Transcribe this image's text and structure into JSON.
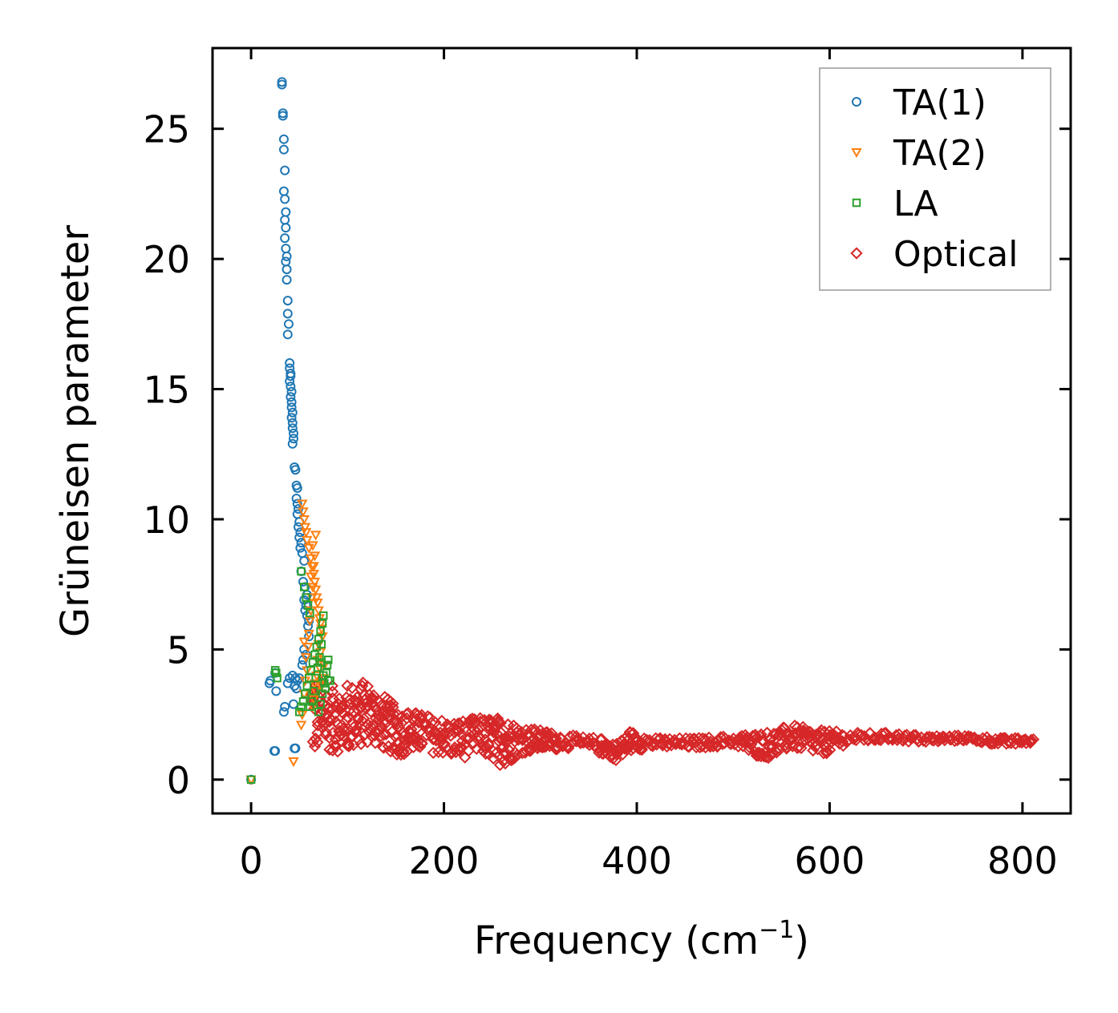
{
  "chart_data": {
    "type": "scatter",
    "xlabel": "Frequency (cm",
    "xlabel_sup": "−1",
    "xlabel_close": ")",
    "ylabel": "Grüneisen parameter",
    "xlim": [
      -40,
      850
    ],
    "ylim": [
      -1.3,
      28.1
    ],
    "xticks": [
      0,
      200,
      400,
      600,
      800
    ],
    "xtick_labels": [
      "0",
      "200",
      "400",
      "600",
      "800"
    ],
    "yticks": [
      0,
      5,
      10,
      15,
      20,
      25
    ],
    "ytick_labels": [
      "0",
      "5",
      "10",
      "15",
      "20",
      "25"
    ],
    "grid": false,
    "legend_position": "top-right",
    "series": [
      {
        "name": "TA(1)",
        "marker": "circle",
        "color": "#1f77b4",
        "points": [
          [
            0,
            0
          ],
          [
            24,
            1.1
          ],
          [
            25,
            1.1
          ],
          [
            19,
            3.7
          ],
          [
            20,
            3.8
          ],
          [
            25,
            4.1
          ],
          [
            26,
            3.4
          ],
          [
            34,
            2.6
          ],
          [
            35,
            2.8
          ],
          [
            38,
            3.7
          ],
          [
            40,
            3.9
          ],
          [
            43,
            4.0
          ],
          [
            45,
            3.6
          ],
          [
            46,
            3.9
          ],
          [
            47,
            3.5
          ],
          [
            44,
            2.9
          ],
          [
            45,
            1.2
          ],
          [
            46,
            1.2
          ],
          [
            48,
            3.8
          ],
          [
            50,
            3.9
          ],
          [
            32,
            26.8
          ],
          [
            32,
            26.7
          ],
          [
            33,
            25.6
          ],
          [
            33,
            25.5
          ],
          [
            34,
            24.6
          ],
          [
            34,
            24.2
          ],
          [
            35,
            23.4
          ],
          [
            34,
            22.6
          ],
          [
            35,
            22.3
          ],
          [
            36,
            21.8
          ],
          [
            35,
            21.5
          ],
          [
            36,
            21.2
          ],
          [
            35,
            20.8
          ],
          [
            36,
            20.4
          ],
          [
            37,
            20.1
          ],
          [
            36,
            19.9
          ],
          [
            37,
            19.6
          ],
          [
            37,
            19.2
          ],
          [
            38,
            18.4
          ],
          [
            38,
            17.9
          ],
          [
            39,
            17.5
          ],
          [
            38,
            17.1
          ],
          [
            40,
            16.0
          ],
          [
            40,
            15.8
          ],
          [
            41,
            15.6
          ],
          [
            41,
            15.5
          ],
          [
            40,
            15.3
          ],
          [
            41,
            15.1
          ],
          [
            42,
            14.9
          ],
          [
            41,
            14.7
          ],
          [
            42,
            14.5
          ],
          [
            42,
            14.3
          ],
          [
            43,
            14.1
          ],
          [
            42,
            13.9
          ],
          [
            43,
            13.7
          ],
          [
            43,
            13.5
          ],
          [
            44,
            13.3
          ],
          [
            44,
            13.1
          ],
          [
            43,
            12.9
          ],
          [
            45,
            12.0
          ],
          [
            46,
            11.9
          ],
          [
            47,
            11.3
          ],
          [
            48,
            11.2
          ],
          [
            47,
            10.8
          ],
          [
            48,
            10.6
          ],
          [
            49,
            10.4
          ],
          [
            48,
            10.2
          ],
          [
            50,
            9.9
          ],
          [
            49,
            9.7
          ],
          [
            51,
            9.5
          ],
          [
            50,
            9.3
          ],
          [
            52,
            9.1
          ],
          [
            51,
            8.9
          ],
          [
            53,
            8.7
          ],
          [
            55,
            8.4
          ],
          [
            52,
            8.0
          ],
          [
            54,
            7.6
          ],
          [
            56,
            7.4
          ],
          [
            58,
            7.1
          ],
          [
            55,
            6.9
          ],
          [
            57,
            6.7
          ],
          [
            56,
            6.5
          ],
          [
            58,
            6.3
          ],
          [
            60,
            6.1
          ],
          [
            59,
            5.9
          ],
          [
            60,
            5.5
          ],
          [
            55,
            5.0
          ],
          [
            57,
            4.8
          ],
          [
            53,
            4.4
          ],
          [
            54,
            4.6
          ]
        ]
      },
      {
        "name": "TA(2)",
        "marker": "triangle-down",
        "color": "#ff7f0e",
        "points": [
          [
            0,
            0
          ],
          [
            44,
            0.7
          ],
          [
            52,
            2.1
          ],
          [
            53,
            2.5
          ],
          [
            55,
            3.3
          ],
          [
            56,
            3.8
          ],
          [
            58,
            4.2
          ],
          [
            57,
            4.7
          ],
          [
            55,
            5.3
          ],
          [
            59,
            5.1
          ],
          [
            60,
            5.6
          ],
          [
            61,
            6.1
          ],
          [
            62,
            6.5
          ],
          [
            63,
            7.0
          ],
          [
            64,
            7.4
          ],
          [
            62,
            7.8
          ],
          [
            65,
            8.2
          ],
          [
            66,
            8.6
          ],
          [
            64,
            9.0
          ],
          [
            67,
            9.4
          ],
          [
            53,
            10.6
          ],
          [
            54,
            10.3
          ],
          [
            55,
            10.0
          ],
          [
            56,
            9.7
          ],
          [
            57,
            9.5
          ],
          [
            58,
            9.2
          ],
          [
            60,
            8.9
          ],
          [
            62,
            8.5
          ],
          [
            63,
            8.2
          ],
          [
            65,
            7.9
          ],
          [
            66,
            7.6
          ],
          [
            67,
            7.3
          ],
          [
            68,
            7.0
          ],
          [
            69,
            6.8
          ],
          [
            70,
            6.5
          ],
          [
            71,
            6.2
          ],
          [
            72,
            6.0
          ],
          [
            73,
            5.8
          ],
          [
            74,
            5.5
          ],
          [
            70,
            5.2
          ],
          [
            72,
            4.9
          ],
          [
            69,
            4.6
          ],
          [
            71,
            4.3
          ],
          [
            68,
            4.0
          ],
          [
            66,
            3.7
          ],
          [
            67,
            3.4
          ],
          [
            65,
            3.1
          ],
          [
            64,
            2.8
          ],
          [
            75,
            3.9
          ],
          [
            76,
            4.4
          ],
          [
            73,
            3.6
          ]
        ]
      },
      {
        "name": "LA",
        "marker": "square",
        "color": "#2ca02c",
        "points": [
          [
            0,
            0
          ],
          [
            25,
            4.2
          ],
          [
            26,
            4.1
          ],
          [
            27,
            3.9
          ],
          [
            50,
            2.6
          ],
          [
            52,
            2.8
          ],
          [
            54,
            3.0
          ],
          [
            56,
            3.3
          ],
          [
            58,
            3.6
          ],
          [
            60,
            3.9
          ],
          [
            62,
            4.2
          ],
          [
            64,
            4.5
          ],
          [
            66,
            4.8
          ],
          [
            68,
            5.1
          ],
          [
            70,
            5.4
          ],
          [
            72,
            5.7
          ],
          [
            74,
            6.0
          ],
          [
            75,
            6.3
          ],
          [
            73,
            5.2
          ],
          [
            71,
            4.7
          ],
          [
            69,
            4.3
          ],
          [
            67,
            3.9
          ],
          [
            65,
            3.4
          ],
          [
            63,
            3.0
          ],
          [
            61,
            2.8
          ],
          [
            70,
            2.6
          ],
          [
            72,
            2.9
          ],
          [
            74,
            3.3
          ],
          [
            76,
            3.7
          ],
          [
            78,
            4.1
          ],
          [
            79,
            4.4
          ],
          [
            80,
            3.8
          ],
          [
            77,
            3.5
          ],
          [
            75,
            4.0
          ],
          [
            73,
            4.5
          ],
          [
            52,
            8.0
          ],
          [
            55,
            7.4
          ],
          [
            57,
            7.0
          ],
          [
            59,
            6.7
          ],
          [
            61,
            6.4
          ],
          [
            82,
            3.8
          ],
          [
            80,
            4.6
          ]
        ]
      },
      {
        "name": "Optical",
        "marker": "diamond",
        "color": "#d62728",
        "envelope": {
          "x": [
            62,
            80,
            100,
            120,
            150,
            180,
            210,
            240,
            260,
            280,
            300,
            330,
            360,
            380,
            390,
            420,
            460,
            500,
            520,
            540,
            560,
            590,
            620,
            660,
            700,
            740,
            780,
            810
          ],
          "ymin": [
            0.9,
            1.1,
            1.0,
            1.4,
            0.9,
            1.1,
            0.8,
            0.9,
            0.5,
            1.0,
            1.1,
            1.2,
            1.0,
            0.7,
            1.1,
            1.2,
            1.2,
            1.3,
            0.9,
            0.8,
            1.2,
            0.9,
            1.4,
            1.5,
            1.4,
            1.5,
            1.3,
            1.4
          ],
          "ymax": [
            4.1,
            3.6,
            3.7,
            3.8,
            2.8,
            2.5,
            2.3,
            2.4,
            2.4,
            2.1,
            1.9,
            1.7,
            1.6,
            1.4,
            1.9,
            1.6,
            1.6,
            1.7,
            1.8,
            1.9,
            2.1,
            1.9,
            1.8,
            1.8,
            1.7,
            1.7,
            1.6,
            1.6
          ]
        }
      }
    ]
  }
}
